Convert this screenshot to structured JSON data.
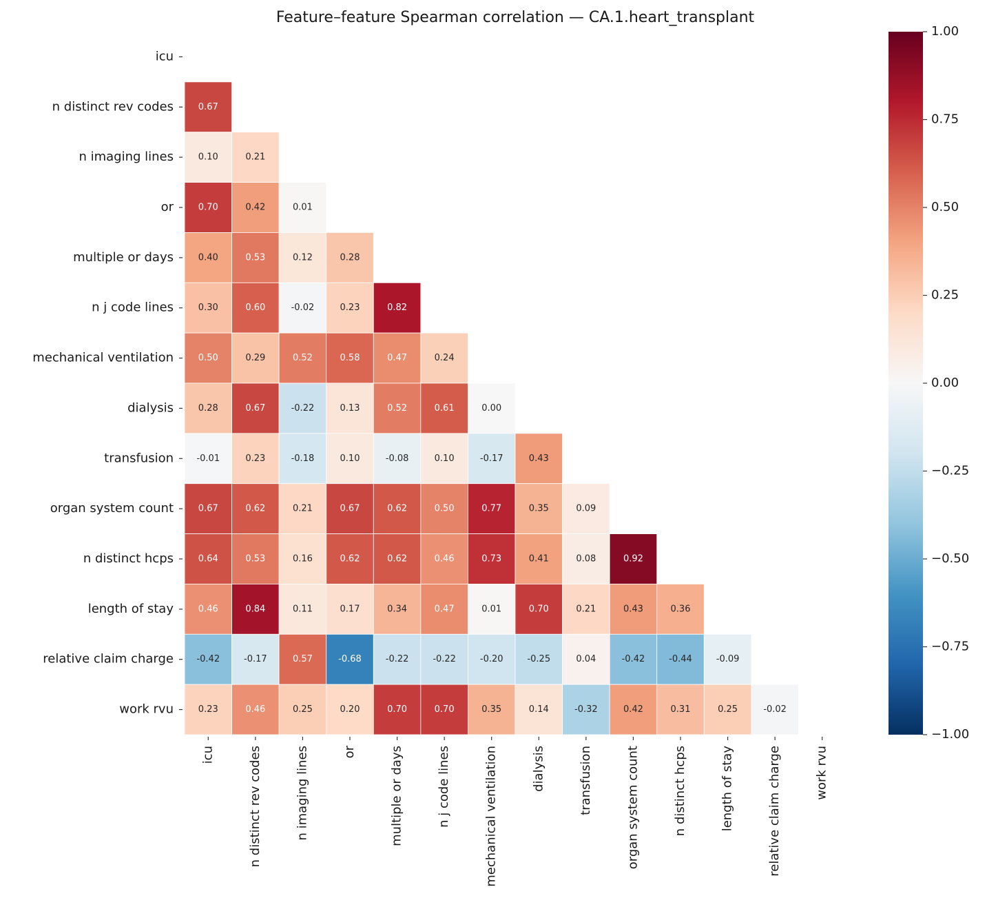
{
  "chart_data": {
    "type": "heatmap",
    "title": "Feature–feature Spearman correlation — CA.1.heart_transplant",
    "categories": [
      "icu",
      "n distinct rev codes",
      "n imaging lines",
      "or",
      "multiple or days",
      "n j code lines",
      "mechanical ventilation",
      "dialysis",
      "transfusion",
      "organ system count",
      "n distinct hcps",
      "length of stay",
      "relative claim charge",
      "work rvu"
    ],
    "values": [
      [],
      [
        0.67
      ],
      [
        0.1,
        0.21
      ],
      [
        0.7,
        0.42,
        0.01
      ],
      [
        0.4,
        0.53,
        0.12,
        0.28
      ],
      [
        0.3,
        0.6,
        -0.02,
        0.23,
        0.82
      ],
      [
        0.5,
        0.29,
        0.52,
        0.58,
        0.47,
        0.24
      ],
      [
        0.28,
        0.67,
        -0.22,
        0.13,
        0.52,
        0.61,
        0.0
      ],
      [
        -0.01,
        0.23,
        -0.18,
        0.1,
        -0.08,
        0.1,
        -0.17,
        0.43
      ],
      [
        0.67,
        0.62,
        0.21,
        0.67,
        0.62,
        0.5,
        0.77,
        0.35,
        0.09
      ],
      [
        0.64,
        0.53,
        0.16,
        0.62,
        0.62,
        0.46,
        0.73,
        0.41,
        0.08,
        0.92
      ],
      [
        0.46,
        0.84,
        0.11,
        0.17,
        0.34,
        0.47,
        0.01,
        0.7,
        0.21,
        0.43,
        0.36
      ],
      [
        -0.42,
        -0.17,
        0.57,
        -0.68,
        -0.22,
        -0.22,
        -0.2,
        -0.25,
        0.04,
        -0.42,
        -0.44,
        -0.09
      ],
      [
        0.23,
        0.46,
        0.25,
        0.2,
        0.7,
        0.7,
        0.35,
        0.14,
        -0.32,
        0.42,
        0.31,
        0.25,
        -0.02
      ]
    ],
    "value_labels": [
      [],
      [
        "0.67"
      ],
      [
        "0.10",
        "0.21"
      ],
      [
        "0.70",
        "0.42",
        "0.01"
      ],
      [
        "0.40",
        "0.53",
        "0.12",
        "0.28"
      ],
      [
        "0.30",
        "0.60",
        "-0.02",
        "0.23",
        "0.82"
      ],
      [
        "0.50",
        "0.29",
        "0.52",
        "0.58",
        "0.47",
        "0.24"
      ],
      [
        "0.28",
        "0.67",
        "-0.22",
        "0.13",
        "0.52",
        "0.61",
        "0.00"
      ],
      [
        "-0.01",
        "0.23",
        "-0.18",
        "0.10",
        "-0.08",
        "0.10",
        "-0.17",
        "0.43"
      ],
      [
        "0.67",
        "0.62",
        "0.21",
        "0.67",
        "0.62",
        "0.50",
        "0.77",
        "0.35",
        "0.09"
      ],
      [
        "0.64",
        "0.53",
        "0.16",
        "0.62",
        "0.62",
        "0.46",
        "0.73",
        "0.41",
        "0.08",
        "0.92"
      ],
      [
        "0.46",
        "0.84",
        "0.11",
        "0.17",
        "0.34",
        "0.47",
        "0.01",
        "0.70",
        "0.21",
        "0.43",
        "0.36"
      ],
      [
        "-0.42",
        "-0.17",
        "0.57",
        "-0.68",
        "-0.22",
        "-0.22",
        "-0.20",
        "-0.25",
        "0.04",
        "-0.42",
        "-0.44",
        "-0.09"
      ],
      [
        "0.23",
        "0.46",
        "0.25",
        "0.20",
        "0.70",
        "0.70",
        "0.35",
        "0.14",
        "-0.32",
        "0.42",
        "0.31",
        "0.25",
        "-0.02"
      ]
    ],
    "colorscale": [
      "#053061",
      "#2166ac",
      "#4393c3",
      "#92c5de",
      "#d1e5f0",
      "#f7f7f7",
      "#fddbc7",
      "#f4a582",
      "#d6604d",
      "#b2182b",
      "#67001f"
    ],
    "clim": [
      -1,
      1
    ],
    "cticks": [
      {
        "value": 1,
        "label": "1.00"
      },
      0.75,
      {
        "value": 0.5,
        "label": "0.50"
      },
      0.25,
      {
        "value": 0,
        "label": "0.00"
      },
      {
        "value": -0.25,
        "label": "−0.25"
      },
      {
        "value": -0.5,
        "label": "−0.50"
      },
      {
        "value": -0.75,
        "label": "−0.75"
      },
      {
        "value": -1,
        "label": "−1.00"
      }
    ]
  }
}
